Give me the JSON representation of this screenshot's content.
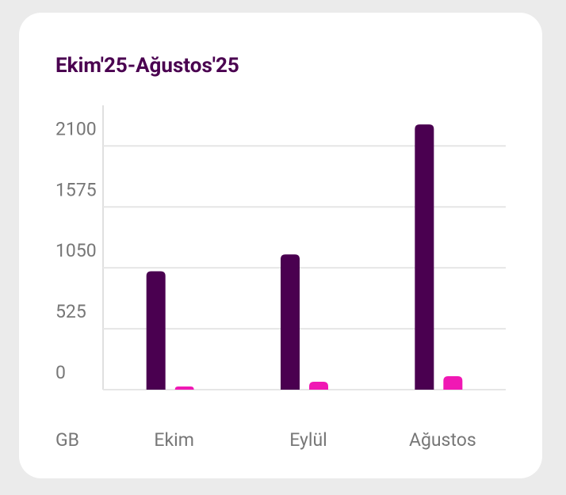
{
  "chart_data": {
    "type": "bar",
    "title": "Ekim'25-Ağustos'25",
    "y_label": "GB",
    "categories": [
      "Ekim",
      "Eylül",
      "Ağustos"
    ],
    "series": [
      {
        "color": "#4a0050",
        "values": [
          1020,
          1165,
          2285
        ]
      },
      {
        "color": "#f018b4",
        "values": [
          27,
          68,
          116
        ]
      }
    ],
    "ylim": [
      0,
      2450
    ],
    "yticks": [
      0,
      525,
      1050,
      1575,
      2100
    ],
    "grid": true
  }
}
